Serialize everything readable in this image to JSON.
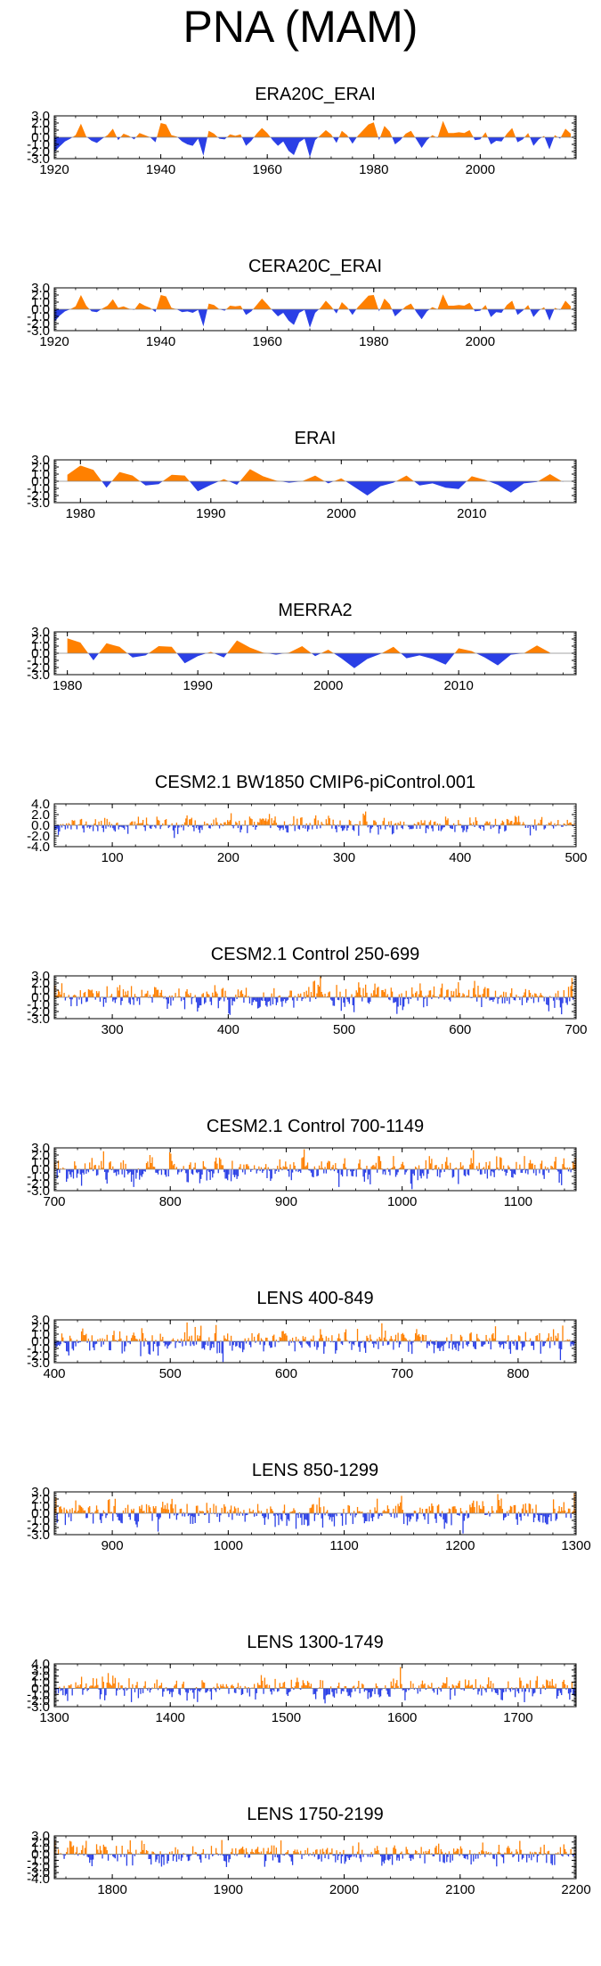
{
  "figure_title": "PNA (MAM)",
  "colors": {
    "positive": "#FF8000",
    "negative": "#2A3FE6",
    "axis": "#000000",
    "zero_line": "#888888"
  },
  "chart_data": [
    {
      "type": "area",
      "title": "ERA20C_ERAI",
      "xlim": [
        1920,
        2018
      ],
      "ylim": [
        -3,
        3
      ],
      "xticks": [
        1920,
        1940,
        1960,
        1980,
        2000
      ],
      "yticks": [
        3.0,
        2.0,
        1.0,
        0.0,
        -1.0,
        -2.0,
        -3.0
      ],
      "ytick_labels": [
        "3.0",
        "2.0",
        "1.0",
        "0.0",
        "-1.0",
        "-2.0",
        "-3.0"
      ],
      "x": [
        1920,
        1921,
        1922,
        1923,
        1924,
        1925,
        1926,
        1927,
        1928,
        1929,
        1930,
        1931,
        1932,
        1933,
        1934,
        1935,
        1936,
        1937,
        1938,
        1939,
        1940,
        1941,
        1942,
        1943,
        1944,
        1945,
        1946,
        1947,
        1948,
        1949,
        1950,
        1951,
        1952,
        1953,
        1954,
        1955,
        1956,
        1957,
        1958,
        1959,
        1960,
        1961,
        1962,
        1963,
        1964,
        1965,
        1966,
        1967,
        1968,
        1969,
        1970,
        1971,
        1972,
        1973,
        1974,
        1975,
        1976,
        1977,
        1978,
        1979,
        1980,
        1981,
        1982,
        1983,
        1984,
        1985,
        1986,
        1987,
        1988,
        1989,
        1990,
        1991,
        1992,
        1993,
        1994,
        1995,
        1996,
        1997,
        1998,
        1999,
        2000,
        2001,
        2002,
        2003,
        2004,
        2005,
        2006,
        2007,
        2008,
        2009,
        2010,
        2011,
        2012,
        2013,
        2014,
        2015,
        2016,
        2017
      ],
      "values": [
        -2.1,
        -1.3,
        -0.6,
        -0.2,
        0.3,
        1.9,
        0.1,
        -0.5,
        -0.8,
        -0.2,
        0.3,
        1.2,
        -0.4,
        0.5,
        0.2,
        -0.3,
        0.6,
        0.3,
        0.0,
        -0.7,
        2.0,
        1.8,
        0.3,
        0.1,
        -0.6,
        -1.0,
        -1.2,
        -0.2,
        -2.6,
        0.9,
        0.5,
        -0.2,
        -0.3,
        0.4,
        0.2,
        0.4,
        -1.2,
        -0.5,
        0.5,
        1.3,
        0.6,
        -0.4,
        -1.2,
        -0.6,
        -1.9,
        -2.5,
        -0.7,
        -0.2,
        -2.8,
        -0.4,
        0.3,
        1.0,
        0.4,
        -0.8,
        0.9,
        0.3,
        -0.9,
        0.2,
        1.0,
        1.8,
        2.1,
        -0.4,
        1.6,
        0.8,
        -1.0,
        -0.4,
        0.5,
        0.9,
        -0.3,
        -1.5,
        -0.4,
        0.3,
        -0.1,
        2.3,
        0.6,
        0.6,
        0.7,
        0.6,
        1.0,
        -0.4,
        -0.3,
        0.7,
        -1.0,
        -0.5,
        -0.6,
        0.5,
        1.3,
        -0.7,
        -0.3,
        0.6,
        -1.2,
        -0.3,
        0.2,
        -1.7,
        0.3,
        -0.2,
        1.2,
        0.5
      ]
    },
    {
      "type": "area",
      "title": "CERA20C_ERAI",
      "xlim": [
        1920,
        2018
      ],
      "ylim": [
        -3,
        3
      ],
      "xticks": [
        1920,
        1940,
        1960,
        1980,
        2000
      ],
      "yticks": [
        3.0,
        2.0,
        1.0,
        0.0,
        -1.0,
        -2.0,
        -3.0
      ],
      "ytick_labels": [
        "3.0",
        "2.0",
        "1.0",
        "0.0",
        "-1.0",
        "-2.0",
        "-3.0"
      ],
      "x": [
        1920,
        1921,
        1922,
        1923,
        1924,
        1925,
        1926,
        1927,
        1928,
        1929,
        1930,
        1931,
        1932,
        1933,
        1934,
        1935,
        1936,
        1937,
        1938,
        1939,
        1940,
        1941,
        1942,
        1943,
        1944,
        1945,
        1946,
        1947,
        1948,
        1949,
        1950,
        1951,
        1952,
        1953,
        1954,
        1955,
        1956,
        1957,
        1958,
        1959,
        1960,
        1961,
        1962,
        1963,
        1964,
        1965,
        1966,
        1967,
        1968,
        1969,
        1970,
        1971,
        1972,
        1973,
        1974,
        1975,
        1976,
        1977,
        1978,
        1979,
        1980,
        1981,
        1982,
        1983,
        1984,
        1985,
        1986,
        1987,
        1988,
        1989,
        1990,
        1991,
        1992,
        1993,
        1994,
        1995,
        1996,
        1997,
        1998,
        1999,
        2000,
        2001,
        2002,
        2003,
        2004,
        2005,
        2006,
        2007,
        2008,
        2009,
        2010,
        2011,
        2012,
        2013,
        2014,
        2015,
        2016,
        2017
      ],
      "values": [
        -1.8,
        -0.9,
        -0.3,
        0.0,
        0.4,
        2.0,
        0.5,
        -0.3,
        -0.4,
        0.1,
        0.5,
        1.4,
        0.2,
        0.4,
        0.1,
        -0.1,
        0.9,
        0.5,
        0.2,
        -0.4,
        2.0,
        1.8,
        0.2,
        0.0,
        -0.4,
        -0.3,
        -0.5,
        -0.1,
        -2.4,
        0.8,
        0.6,
        0.0,
        -0.2,
        0.5,
        0.4,
        0.5,
        -0.8,
        -0.3,
        0.6,
        1.5,
        0.7,
        -0.2,
        -1.0,
        -0.5,
        -1.6,
        -2.2,
        -0.5,
        -0.1,
        -2.6,
        -0.5,
        0.2,
        1.2,
        0.4,
        -0.6,
        1.0,
        0.3,
        -0.8,
        0.3,
        1.1,
        1.9,
        2.0,
        -0.3,
        1.5,
        0.7,
        -1.0,
        -0.3,
        0.4,
        0.8,
        -0.4,
        -1.4,
        -0.3,
        0.3,
        0.0,
        2.1,
        0.5,
        0.5,
        0.6,
        0.5,
        0.9,
        -0.3,
        -0.2,
        0.6,
        -1.1,
        -0.4,
        -0.5,
        0.6,
        1.2,
        -0.8,
        -0.2,
        0.6,
        -1.1,
        -0.2,
        0.3,
        -1.6,
        0.2,
        -0.1,
        1.2,
        0.4
      ]
    },
    {
      "type": "area",
      "title": "ERAI",
      "xlim": [
        1978,
        2018
      ],
      "ylim": [
        -3,
        3
      ],
      "xticks": [
        1980,
        1990,
        2000,
        2010
      ],
      "yticks": [
        3.0,
        2.0,
        1.0,
        0.0,
        -1.0,
        -2.0,
        -3.0
      ],
      "ytick_labels": [
        "3.0",
        "2.0",
        "1.0",
        "0.0",
        "-1.0",
        "-2.0",
        "-3.0"
      ],
      "x": [
        1979,
        1980,
        1981,
        1982,
        1983,
        1984,
        1985,
        1986,
        1987,
        1988,
        1989,
        1990,
        1991,
        1992,
        1993,
        1994,
        1995,
        1996,
        1997,
        1998,
        1999,
        2000,
        2001,
        2002,
        2003,
        2004,
        2005,
        2006,
        2007,
        2008,
        2009,
        2010,
        2011,
        2012,
        2013,
        2014,
        2015,
        2016,
        2017
      ],
      "values": [
        0.9,
        2.2,
        1.6,
        -0.9,
        1.3,
        0.8,
        -0.6,
        -0.4,
        0.9,
        0.8,
        -1.4,
        -0.5,
        0.3,
        -0.5,
        1.7,
        0.7,
        0.1,
        -0.2,
        0.0,
        0.8,
        -0.3,
        0.4,
        -0.8,
        -2.0,
        -0.7,
        -0.2,
        0.8,
        -0.6,
        -0.3,
        -0.9,
        -1.1,
        0.7,
        0.2,
        -0.5,
        -1.6,
        -0.3,
        -0.1,
        1.0,
        -0.1
      ]
    },
    {
      "type": "area",
      "title": "MERRA2",
      "xlim": [
        1979,
        2019
      ],
      "ylim": [
        -3,
        3
      ],
      "xticks": [
        1980,
        1990,
        2000,
        2010
      ],
      "yticks": [
        3.0,
        2.0,
        1.0,
        0.0,
        -1.0,
        -2.0,
        -3.0
      ],
      "ytick_labels": [
        "3.0",
        "2.0",
        "1.0",
        "0.0",
        "-1.0",
        "-2.0",
        "-3.0"
      ],
      "x": [
        1980,
        1981,
        1982,
        1983,
        1984,
        1985,
        1986,
        1987,
        1988,
        1989,
        1990,
        1991,
        1992,
        1993,
        1994,
        1995,
        1996,
        1997,
        1998,
        1999,
        2000,
        2001,
        2002,
        2003,
        2004,
        2005,
        2006,
        2007,
        2008,
        2009,
        2010,
        2011,
        2012,
        2013,
        2014,
        2015,
        2016,
        2017
      ],
      "values": [
        2.1,
        1.5,
        -1.0,
        1.4,
        0.9,
        -0.6,
        -0.3,
        1.0,
        0.9,
        -1.4,
        -0.4,
        0.2,
        -0.6,
        1.8,
        0.8,
        0.1,
        -0.2,
        0.1,
        1.0,
        -0.4,
        0.5,
        -0.7,
        -2.1,
        -0.8,
        -0.1,
        0.9,
        -0.7,
        -0.3,
        -0.8,
        -1.6,
        0.7,
        0.3,
        -0.6,
        -1.7,
        -0.2,
        0.0,
        1.1,
        0.1
      ]
    },
    {
      "type": "bar",
      "title": "CESM2.1 BW1850 CMIP6-piControl.001",
      "xlim": [
        50,
        500
      ],
      "ylim": [
        -4,
        4
      ],
      "seed": 11,
      "scale": 0.75,
      "xticks": [
        100,
        200,
        300,
        400,
        500
      ],
      "yticks": [
        4.0,
        2.0,
        0.0,
        -2.0,
        -4.0
      ],
      "ytick_labels": [
        "4.0",
        "2.0",
        "0.0",
        "-2.0",
        "-4.0"
      ]
    },
    {
      "type": "bar",
      "title": "CESM2.1 Control 250-699",
      "xlim": [
        250,
        700
      ],
      "ylim": [
        -3,
        3
      ],
      "seed": 23,
      "scale": 0.85,
      "xticks": [
        300,
        400,
        500,
        600,
        700
      ],
      "yticks": [
        3.0,
        2.0,
        1.0,
        0.0,
        -1.0,
        -2.0,
        -3.0
      ],
      "ytick_labels": [
        "3.0",
        "2.0",
        "1.0",
        "0.0",
        "-1.0",
        "-2.0",
        "-3.0"
      ]
    },
    {
      "type": "bar",
      "title": "CESM2.1 Control 700-1149",
      "xlim": [
        700,
        1150
      ],
      "ylim": [
        -3,
        3
      ],
      "seed": 37,
      "scale": 0.85,
      "xticks": [
        700,
        800,
        900,
        1000,
        1100
      ],
      "yticks": [
        3.0,
        2.0,
        1.0,
        0.0,
        -1.0,
        -2.0,
        -3.0
      ],
      "ytick_labels": [
        "3.0",
        "2.0",
        "1.0",
        "0.0",
        "-1.0",
        "-2.0",
        "-3.0"
      ]
    },
    {
      "type": "bar",
      "title": "LENS 400-849",
      "xlim": [
        400,
        850
      ],
      "ylim": [
        -3,
        3
      ],
      "seed": 41,
      "scale": 0.85,
      "xticks": [
        400,
        500,
        600,
        700,
        800
      ],
      "yticks": [
        3.0,
        2.0,
        1.0,
        0.0,
        -1.0,
        -2.0,
        -3.0
      ],
      "ytick_labels": [
        "3.0",
        "2.0",
        "1.0",
        "0.0",
        "-1.0",
        "-2.0",
        "-3.0"
      ]
    },
    {
      "type": "bar",
      "title": "LENS 850-1299",
      "xlim": [
        850,
        1300
      ],
      "ylim": [
        -3,
        3
      ],
      "seed": 53,
      "scale": 0.85,
      "xticks": [
        900,
        1000,
        1100,
        1200,
        1300
      ],
      "yticks": [
        3.0,
        2.0,
        1.0,
        0.0,
        -1.0,
        -2.0,
        -3.0
      ],
      "ytick_labels": [
        "3.0",
        "2.0",
        "1.0",
        "0.0",
        "-1.0",
        "-2.0",
        "-3.0"
      ]
    },
    {
      "type": "bar",
      "title": "LENS 1300-1749",
      "xlim": [
        1300,
        1750
      ],
      "ylim": [
        -3,
        4
      ],
      "seed": 67,
      "scale": 0.85,
      "xticks": [
        1300,
        1400,
        1500,
        1600,
        1700
      ],
      "yticks": [
        4.0,
        3.0,
        2.0,
        1.0,
        0.0,
        -1.0,
        -2.0,
        -3.0
      ],
      "ytick_labels": [
        "4.0",
        "3.0",
        "2.0",
        "1.0",
        "0.0",
        "-1.0",
        "-2.0",
        "-3.0"
      ]
    },
    {
      "type": "bar",
      "title": "LENS 1750-2199",
      "xlim": [
        1750,
        2200
      ],
      "ylim": [
        -4,
        3
      ],
      "seed": 79,
      "scale": 0.85,
      "xticks": [
        1800,
        1900,
        2000,
        2100,
        2200
      ],
      "yticks": [
        3.0,
        2.0,
        1.0,
        0.0,
        -1.0,
        -2.0,
        -3.0,
        -4.0
      ],
      "ytick_labels": [
        "3.0",
        "2.0",
        "1.0",
        "0.0",
        "-1.0",
        "-2.0",
        "-3.0",
        "-4.0"
      ]
    }
  ]
}
